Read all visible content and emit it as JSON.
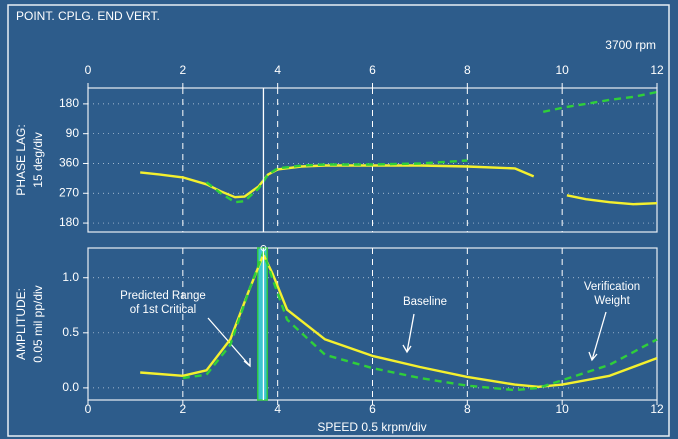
{
  "chart_data": [
    {
      "type": "line",
      "title": "POINT. CPLG. END VERT.",
      "subtitle": "3700 rpm",
      "ylabel": [
        "PHASE LAG:",
        "15 deg/div"
      ],
      "x": [
        1.1,
        1.5,
        2,
        2.5,
        2.8,
        3.1,
        3.3,
        3.6,
        3.8,
        4,
        4.5,
        5,
        6,
        7,
        8,
        9,
        9.4,
        9.6,
        10.1,
        10.5,
        11,
        11.5,
        12
      ],
      "xlim": [
        0,
        12
      ],
      "xticks": [
        0,
        2,
        4,
        6,
        8,
        10,
        12
      ],
      "ylim": [
        153,
        588
      ],
      "yticks": [
        180,
        270,
        360,
        {
          "value": 450,
          "label": "90"
        },
        {
          "value": 540,
          "label": "180"
        }
      ],
      "cursor_x": 3.7,
      "grid": true,
      "series": [
        {
          "color": "#f4f02e",
          "dashed": false,
          "values": [
            333,
            327,
            318,
            297,
            276,
            258,
            260,
            291,
            327,
            342,
            351,
            354,
            354,
            354,
            351,
            345,
            321,
            null,
            264,
            252,
            243,
            237,
            240
          ]
        },
        {
          "color": "#2fcf3a",
          "dashed": true,
          "values": [
            null,
            null,
            null,
            303,
            270,
            243,
            246,
            285,
            327,
            345,
            354,
            357,
            357,
            360,
            369,
            null,
            null,
            516,
            531,
            540,
            552,
            561,
            576
          ]
        }
      ]
    },
    {
      "type": "line",
      "xlabel": "SPEED 0.5 krpm/div",
      "ylabel": [
        "AMPLITUDE:",
        "0.05 mil pp/div"
      ],
      "x": [
        1.1,
        2,
        2.5,
        3,
        3.4,
        3.7,
        3.9,
        4.2,
        5,
        6,
        7,
        8,
        9,
        9.5,
        10,
        11,
        12
      ],
      "xlim": [
        0,
        12
      ],
      "xticks": [
        0,
        2,
        4,
        6,
        8,
        10,
        12
      ],
      "ylim": [
        -0.11,
        1.27
      ],
      "yticks": [
        {
          "value": 0,
          "label": "0.0"
        },
        0.5,
        {
          "value": 1,
          "label": "1.0"
        }
      ],
      "cursor_x": 3.7,
      "highlight_band": [
        3.58,
        3.78
      ],
      "grid": true,
      "annotations": [
        [
          "Predicted Range",
          "of 1st Critical"
        ],
        [
          "Baseline"
        ],
        [
          "Verification",
          "Weight"
        ]
      ],
      "series": [
        {
          "color": "#f4f02e",
          "dashed": false,
          "values": [
            0.14,
            0.11,
            0.16,
            0.44,
            0.89,
            1.21,
            1.03,
            0.71,
            0.44,
            0.29,
            0.19,
            0.1,
            0.03,
            0.01,
            0.03,
            0.11,
            0.27
          ]
        },
        {
          "color": "#2fcf3a",
          "dashed": true,
          "values": [
            null,
            0.09,
            0.12,
            0.39,
            0.89,
            1.23,
            0.98,
            0.62,
            0.3,
            0.18,
            0.09,
            0.02,
            -0.02,
            0,
            0.07,
            0.21,
            0.44
          ]
        }
      ]
    }
  ]
}
